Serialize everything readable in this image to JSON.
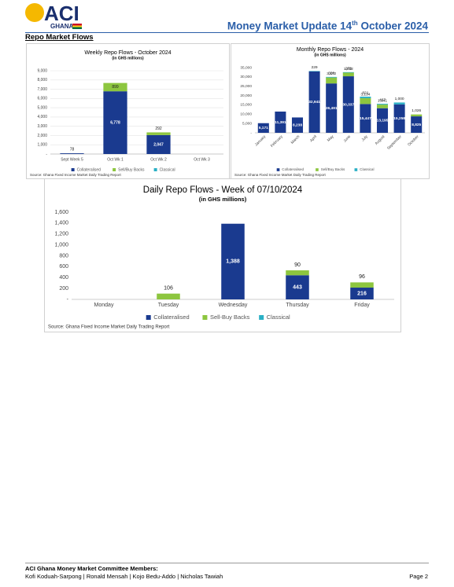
{
  "header": {
    "logo": "ACI",
    "logo_sub": "GHANA",
    "title": "Money Market Update 14",
    "title_sup": "th",
    "title_end": " October 2024"
  },
  "section_title": "Repo Market Flows",
  "chart_data": [
    {
      "type": "bar",
      "title": "Weekly Repo Flows - October 2024",
      "subtitle": "(in GHS millions)",
      "categories": [
        "Sept Week 5",
        "Oct Wk 1",
        "Oct Wk 2",
        "Oct Wk 3"
      ],
      "series": [
        {
          "name": "Collateralised",
          "color": "#1a3a8f",
          "values": [
            78,
            6778,
            2047,
            null
          ],
          "value_labels": [
            "78",
            "6,778",
            "2,047",
            null
          ]
        },
        {
          "name": "Sell/Buy Backs",
          "color": "#8dc63f",
          "values": [
            null,
            899,
            292,
            null
          ],
          "value_labels": [
            null,
            "899",
            "292",
            null
          ]
        },
        {
          "name": "Classical",
          "color": "#2ab0c5",
          "values": [
            null,
            null,
            null,
            null
          ],
          "value_labels": [
            null,
            null,
            null,
            null
          ]
        }
      ],
      "ylim": [
        0,
        9000
      ],
      "yticks": [
        {
          "value": 0,
          "label": "-"
        },
        {
          "value": 1000,
          "label": "1,000"
        },
        {
          "value": 2000,
          "label": "2,000"
        },
        {
          "value": 3000,
          "label": "3,000"
        },
        {
          "value": 4000,
          "label": "4,000"
        },
        {
          "value": 5000,
          "label": "5,000"
        },
        {
          "value": 6000,
          "label": "6,000"
        },
        {
          "value": 7000,
          "label": "7,000"
        },
        {
          "value": 8000,
          "label": "8,000"
        },
        {
          "value": 9000,
          "label": "9,000"
        }
      ],
      "grid": true,
      "legend": "bottom",
      "source": "Source: Ghana Fixed Income Market Daily Trading Report"
    },
    {
      "type": "bar",
      "title": "Monthly Repo Flows - 2024",
      "subtitle": "(in GHS millions)",
      "categories": [
        "January",
        "February",
        "March",
        "April",
        "May",
        "June",
        "July",
        "August",
        "September",
        "October"
      ],
      "series": [
        {
          "name": "Collateralised",
          "color": "#1a3a8f",
          "values": [
            5171,
            11391,
            8238,
            32941,
            26491,
            30337,
            15447,
            13195,
            15258,
            8825
          ],
          "value_labels": [
            "5,171",
            "11,391",
            "8,238",
            "32,941",
            "26,491",
            "30,337",
            "15,447",
            "13,195",
            "15,258",
            "8,825"
          ]
        },
        {
          "name": "Sell/Buy Backs",
          "color": "#8dc63f",
          "values": [
            null,
            null,
            null,
            null,
            3172,
            1922,
            3134,
            1941,
            null,
            1026
          ],
          "value_labels": [
            null,
            null,
            null,
            null,
            "3,172",
            "1,922",
            "3,134",
            "1,941",
            null,
            "1,026"
          ]
        },
        {
          "name": "Classical",
          "color": "#2ab0c5",
          "values": [
            null,
            null,
            null,
            229,
            330,
            278,
            821,
            427,
            1000,
            null
          ],
          "value_labels": [
            null,
            null,
            null,
            "229",
            "330",
            "278",
            "821",
            "427",
            "1,000",
            null
          ]
        }
      ],
      "ylim": [
        0,
        35000
      ],
      "yticks": [
        {
          "value": 0,
          "label": "-"
        },
        {
          "value": 5000,
          "label": "5,000"
        },
        {
          "value": 10000,
          "label": "10,000"
        },
        {
          "value": 15000,
          "label": "15,000"
        },
        {
          "value": 20000,
          "label": "20,000"
        },
        {
          "value": 25000,
          "label": "25,000"
        },
        {
          "value": 30000,
          "label": "30,000"
        },
        {
          "value": 35000,
          "label": "35,000"
        }
      ],
      "grid": false,
      "legend": "bottom",
      "source": "Source: Ghana Fixed Income Market Daily Trading Report"
    },
    {
      "type": "bar",
      "title": "Daily Repo Flows - Week of 07/10/2024",
      "subtitle": "(in GHS millions)",
      "categories": [
        "Monday",
        "Tuesday",
        "Wednesday",
        "Thursday",
        "Friday"
      ],
      "series": [
        {
          "name": "Collateralised",
          "color": "#1a3a8f",
          "values": [
            null,
            null,
            1388,
            443,
            216
          ],
          "value_labels": [
            null,
            null,
            "1,388",
            "443",
            "216"
          ]
        },
        {
          "name": "Sell-Buy Backs",
          "color": "#8dc63f",
          "values": [
            null,
            106,
            null,
            90,
            96
          ],
          "value_labels": [
            null,
            "106",
            null,
            "90",
            "96"
          ]
        },
        {
          "name": "Classical",
          "color": "#2ab0c5",
          "values": [
            null,
            null,
            null,
            null,
            null
          ],
          "value_labels": [
            null,
            null,
            null,
            null,
            null
          ]
        }
      ],
      "ylim": [
        0,
        1600
      ],
      "yticks": [
        {
          "value": 0,
          "label": "-"
        },
        200,
        400,
        600,
        800,
        {
          "value": 1000,
          "label": "1,000"
        },
        {
          "value": 1200,
          "label": "1,200"
        },
        {
          "value": 1400,
          "label": "1,400"
        },
        {
          "value": 1600,
          "label": "1,600"
        }
      ],
      "grid": false,
      "legend": "bottom",
      "source": "Source: Ghana Fixed Income Market Daily Trading Report"
    }
  ],
  "footer": {
    "committee": "ACI Ghana Money Market Committee Members:",
    "members": "Kofi Koduah-Sarpong | Ronald Mensah | Kojo Bedu-Addo | Nicholas Tawiah",
    "page": "Page 2"
  }
}
